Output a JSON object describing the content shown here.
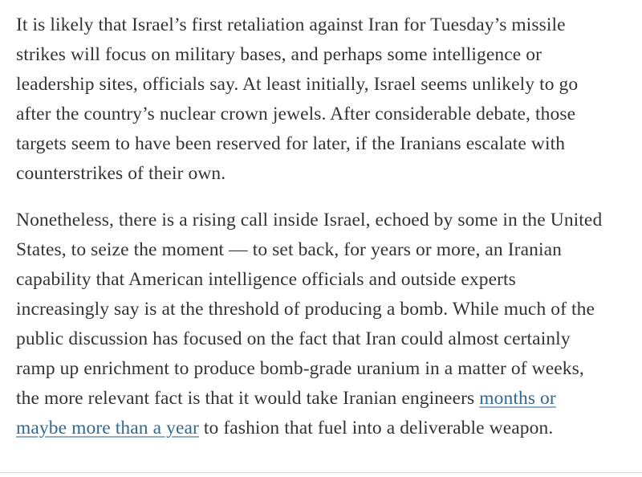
{
  "article": {
    "paragraph1": "It is likely that Israel’s first retaliation against Iran for Tuesday’s missile strikes will focus on military bases, and perhaps some intelligence or leadership sites, officials say. At least initially, Israel seems unlikely to go after the country’s nuclear crown jewels. After considerable debate, those targets seem to have been reserved for later, if the Iranians escalate with counterstrikes of their own.",
    "paragraph2_before_link": "Nonetheless, there is a rising call inside Israel, echoed by some in the United States, to seize the moment — to set back, for years or more, an Iranian capability that American intelligence officials and outside experts increasingly say is at the threshold of producing a bomb. While much of the public discussion has focused on the fact that Iran could almost certainly ramp up enrichment to produce bomb-grade uranium in a matter of weeks, the more relevant fact is that it would take Iranian engineers ",
    "link_text": "months or maybe more than a year",
    "paragraph2_after_link": " to fashion that fuel into a deliverable weapon."
  },
  "colors": {
    "text": "#333333",
    "link": "#326891",
    "link_underline": "#8fadc3",
    "divider": "#d6d6d6",
    "background": "#ffffff"
  }
}
